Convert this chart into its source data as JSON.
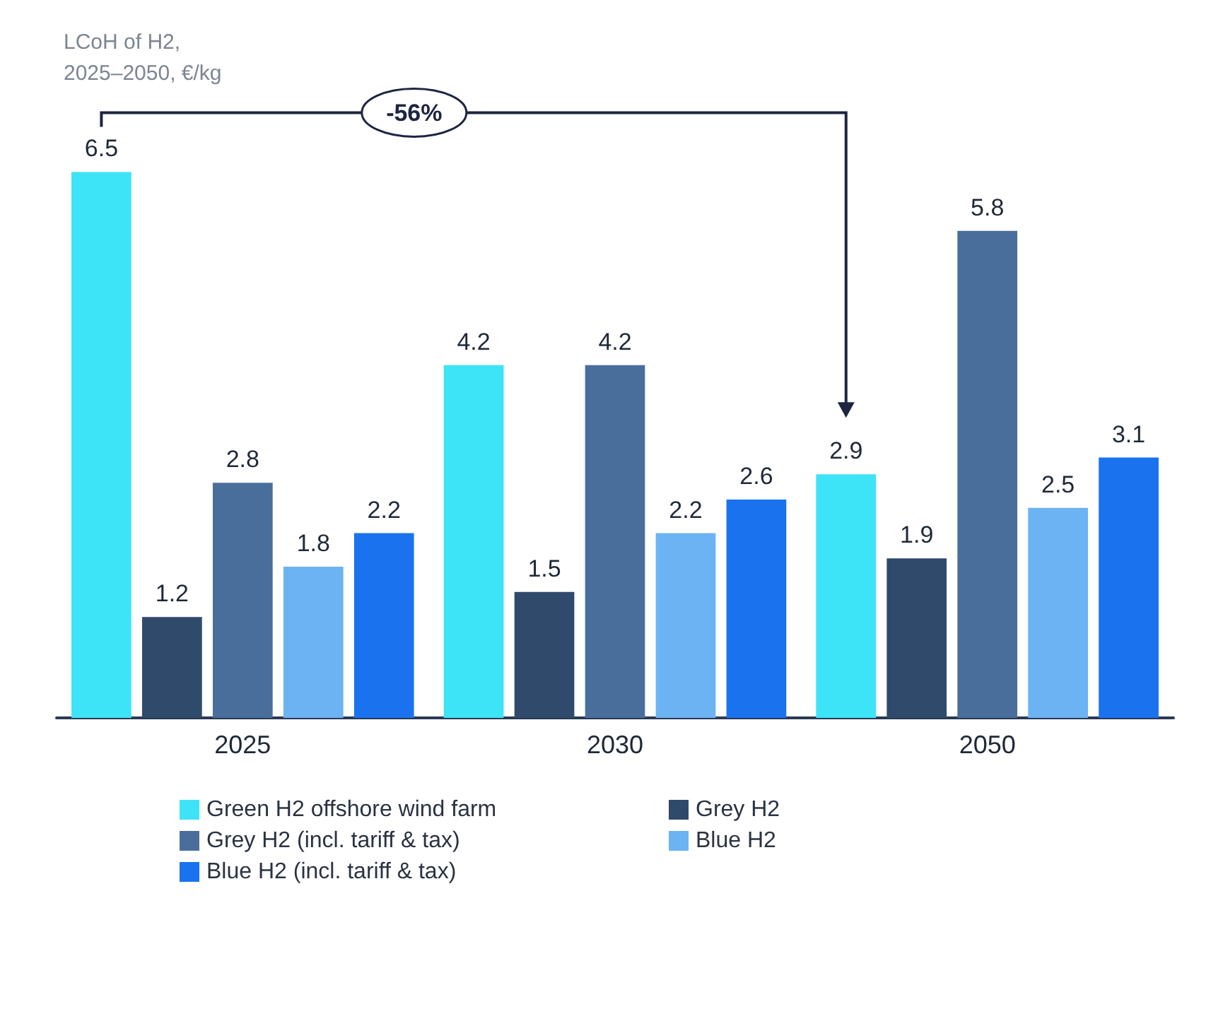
{
  "chart_data": {
    "type": "bar",
    "ylabel": "LCoH of H2,\n2025–2050, €/kg",
    "categories": [
      "2025",
      "2030",
      "2050"
    ],
    "series": [
      {
        "name": "Green H2 offshore wind farm",
        "color": "#3de3f7",
        "values": [
          6.5,
          4.2,
          2.9
        ]
      },
      {
        "name": "Grey H2",
        "color": "#2f4a6a",
        "values": [
          1.2,
          1.5,
          1.9
        ]
      },
      {
        "name": "Grey H2 (incl. tariff & tax)",
        "color": "#4a6e9c",
        "values": [
          2.8,
          4.2,
          5.8
        ]
      },
      {
        "name": "Blue H2",
        "color": "#6cb3f4",
        "values": [
          1.8,
          2.2,
          2.5
        ]
      },
      {
        "name": "Blue H2 (incl. tariff & tax)",
        "color": "#1a72ee",
        "values": [
          2.2,
          2.6,
          3.1
        ]
      }
    ],
    "data_labels": true,
    "legend": "bottom",
    "annotations": [
      "-56%"
    ]
  }
}
